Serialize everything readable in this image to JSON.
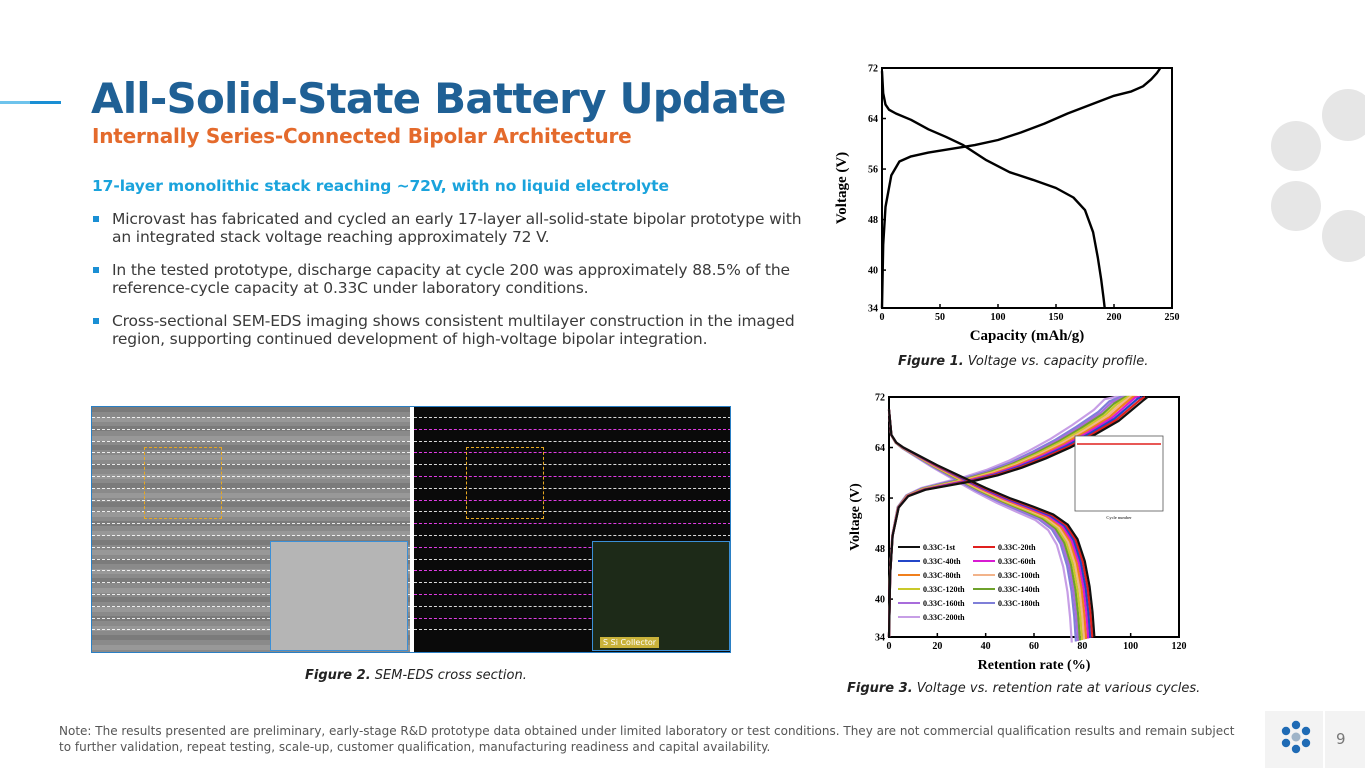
{
  "header": {
    "title": "All-Solid-State Battery Update",
    "subtitle": "Internally Series-Connected Bipolar Architecture"
  },
  "lead": "17-layer monolithic stack reaching ~72V, with no liquid electrolyte",
  "bullets": [
    "Microvast has fabricated and cycled an early 17-layer all-solid-state bipolar prototype with an integrated stack voltage reaching approximately 72 V.",
    "In the tested prototype, discharge capacity at cycle 200 was approximately 88.5% of the reference-cycle capacity at 0.33C under laboratory conditions.",
    "Cross-sectional SEM-EDS imaging shows consistent multilayer construction in the imaged region, supporting continued development of high-voltage bipolar integration."
  ],
  "figures": {
    "fig1": {
      "label": "Figure 1.",
      "text": "Voltage vs. capacity profile."
    },
    "fig2": {
      "label": "Figure 2.",
      "text": "SEM-EDS cross section.",
      "legend": "S  Si  Collector"
    },
    "fig3": {
      "label": "Figure 3.",
      "text": "Voltage vs. retention rate at various cycles.",
      "inset_xlabel": "Cycle number"
    }
  },
  "chart_data": [
    {
      "type": "line",
      "xlabel": "Capacity (mAh/g)",
      "ylabel": "Voltage (V)",
      "xlim": [
        0,
        250
      ],
      "ylim": [
        34,
        72
      ],
      "xticks": [
        "0",
        "50",
        "100",
        "150",
        "200",
        "250"
      ],
      "yticks": [
        "34",
        "40",
        "48",
        "56",
        "64",
        "72"
      ],
      "series": [
        {
          "x": [
            0,
            1,
            3,
            8,
            15,
            25,
            40,
            60,
            80,
            100,
            120,
            140,
            160,
            180,
            200,
            215,
            225,
            232,
            237,
            240
          ],
          "y": [
            34,
            44,
            50,
            55,
            57.2,
            58,
            58.6,
            59.2,
            59.8,
            60.6,
            61.8,
            63.2,
            64.8,
            66.2,
            67.6,
            68.3,
            69.1,
            70.2,
            71.2,
            72
          ]
        },
        {
          "x": [
            0,
            1,
            3,
            6,
            12,
            25,
            40,
            55,
            70,
            90,
            110,
            130,
            150,
            165,
            175,
            182,
            186,
            189,
            191,
            192
          ],
          "y": [
            71.5,
            68,
            66.2,
            65.4,
            64.8,
            63.8,
            62.3,
            61.1,
            59.8,
            57.4,
            55.5,
            54.3,
            53,
            51.5,
            49.5,
            46,
            42,
            38.5,
            35.5,
            34
          ]
        }
      ]
    },
    {
      "type": "line",
      "xlabel": "Retention rate (%)",
      "ylabel": "Voltage (V)",
      "xlim": [
        0,
        120
      ],
      "ylim": [
        34,
        72
      ],
      "xticks": [
        "0",
        "20",
        "40",
        "60",
        "80",
        "100",
        "120"
      ],
      "yticks": [
        "34",
        "40",
        "48",
        "56",
        "64",
        "72"
      ],
      "legend_position": "bottom-left",
      "series": [
        {
          "name": "0.33C-1st",
          "color": "#111111",
          "end": 100
        },
        {
          "name": "0.33C-20th",
          "color": "#e0201e",
          "end": 99
        },
        {
          "name": "0.33C-40th",
          "color": "#2346c8",
          "end": 98
        },
        {
          "name": "0.33C-60th",
          "color": "#d81bd2",
          "end": 97
        },
        {
          "name": "0.33C-80th",
          "color": "#f07f1c",
          "end": 96
        },
        {
          "name": "0.33C-100th",
          "color": "#f2b38a",
          "end": 95
        },
        {
          "name": "0.33C-120th",
          "color": "#c9c92a",
          "end": 94
        },
        {
          "name": "0.33C-140th",
          "color": "#6ea12b",
          "end": 93
        },
        {
          "name": "0.33C-160th",
          "color": "#a86cdb",
          "end": 92
        },
        {
          "name": "0.33C-180th",
          "color": "#7f7fd8",
          "end": 91
        },
        {
          "name": "0.33C-200th",
          "color": "#c79ee6",
          "end": 89
        }
      ]
    }
  ],
  "note": "Note: The results presented are preliminary, early-stage R&D prototype data obtained under limited laboratory or test conditions. They are not commercial qualification results and remain subject to further validation, repeat testing, scale-up, customer qualification, manufacturing readiness and capital availability.",
  "footer": {
    "page": "9"
  },
  "colors": {
    "title": "#1f6095",
    "subtitle": "#e46a2c",
    "lead": "#1aa3dc",
    "bullet": "#1a8fd4"
  }
}
